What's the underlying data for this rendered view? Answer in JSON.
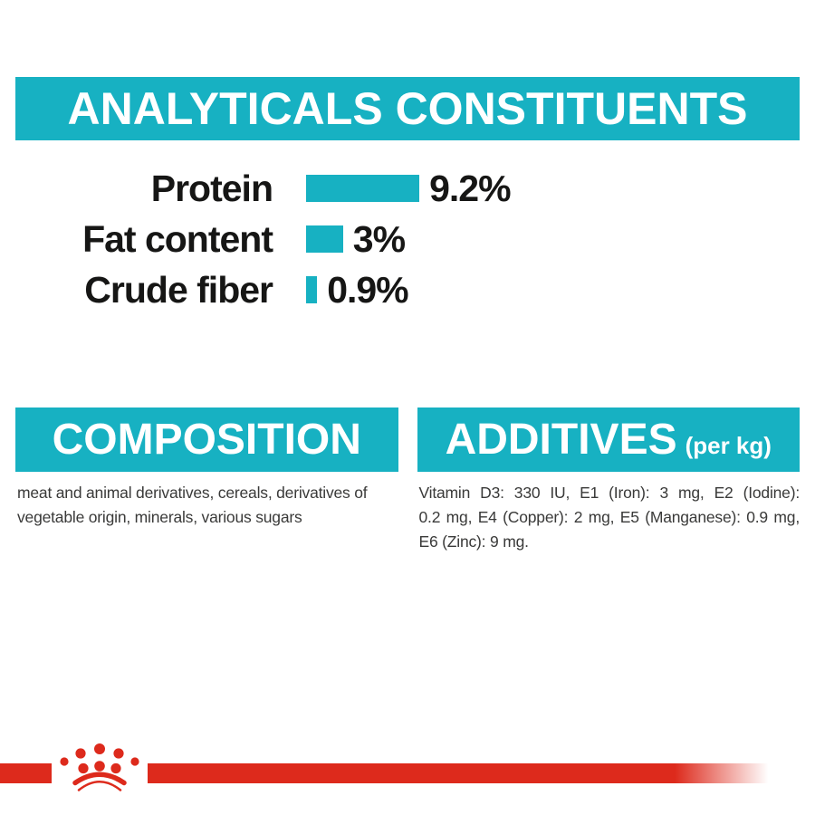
{
  "colors": {
    "teal": "#17b1c2",
    "red": "#dd2a1c",
    "black": "#161615",
    "gray": "#3a3a39",
    "background": "#ffffff"
  },
  "header": {
    "title": "ANALYTICALS CONSTITUENTS"
  },
  "chart_data": {
    "type": "bar",
    "orientation": "horizontal",
    "title": "ANALYTICALS CONSTITUENTS",
    "categories": [
      "Protein",
      "Fat content",
      "Crude fiber"
    ],
    "values": [
      9.2,
      3,
      0.9
    ],
    "value_labels": [
      "9.2%",
      "3%",
      "0.9%"
    ],
    "unit": "%",
    "xlim": [
      0,
      10
    ],
    "grid": "off",
    "axes": "hidden",
    "bar_color": "#17b1c2",
    "legend": "none"
  },
  "composition": {
    "title": "COMPOSITION",
    "lines": [
      "meat and animal derivatives, cereals, derivatives of",
      "vegetable origin, minerals, various sugars"
    ]
  },
  "additives": {
    "title": "ADDITIVES",
    "suffix": "(per kg)",
    "lines": [
      "Vitamin D3: 330 IU, E1 (Iron): 3 mg, E2 (Iodine):",
      "0.2 mg, E4 (Copper): 2 mg, E5 (Manganese): 0.9 mg,",
      "E6 (Zinc): 9 mg."
    ]
  },
  "footer": {
    "logo": "royal-canin-crown-logo"
  }
}
